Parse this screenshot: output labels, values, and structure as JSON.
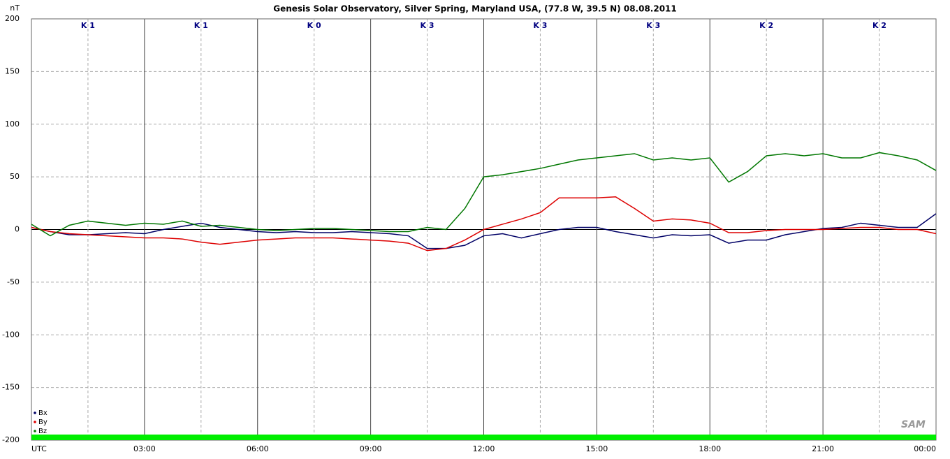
{
  "chart_data": {
    "type": "line",
    "title": "Genesis Solar Observatory, Silver Spring, Maryland USA, (77.8 W, 39.5 N)  08.08.2011",
    "y_label": "nT",
    "logo": "SAM",
    "annotations": [
      "K 1",
      "K 1",
      "K 0",
      "K 3",
      "K 3",
      "K 3",
      "K 2",
      "K 2"
    ],
    "x": [
      0,
      0.5,
      1,
      1.5,
      2,
      2.5,
      3,
      3.5,
      4,
      4.5,
      5,
      5.5,
      6,
      6.5,
      7,
      7.5,
      8,
      8.5,
      9,
      9.5,
      10,
      10.5,
      11,
      11.5,
      12,
      12.5,
      13,
      13.5,
      14,
      14.5,
      15,
      15.5,
      16,
      16.5,
      17,
      17.5,
      18,
      18.5,
      19,
      19.5,
      20,
      20.5,
      21,
      21.5,
      22,
      22.5,
      23,
      23.5,
      24
    ],
    "series": [
      {
        "name": "Bx",
        "color": "#000066",
        "values": [
          2,
          -2,
          -5,
          -5,
          -4,
          -3,
          -4,
          0,
          3,
          6,
          2,
          0,
          -2,
          -3,
          -2,
          -3,
          -3,
          -2,
          -3,
          -4,
          -6,
          -18,
          -18,
          -15,
          -6,
          -4,
          -8,
          -4,
          0,
          2,
          2,
          -2,
          -5,
          -8,
          -5,
          -6,
          -5,
          -13,
          -10,
          -10,
          -5,
          -2,
          1,
          2,
          6,
          4,
          2,
          2,
          15
        ]
      },
      {
        "name": "By",
        "color": "#dd0000",
        "values": [
          2,
          -2,
          -4,
          -5,
          -6,
          -7,
          -8,
          -8,
          -9,
          -12,
          -14,
          -12,
          -10,
          -9,
          -8,
          -8,
          -8,
          -9,
          -10,
          -11,
          -13,
          -20,
          -18,
          -10,
          0,
          5,
          10,
          16,
          30,
          30,
          30,
          31,
          20,
          8,
          10,
          9,
          6,
          -3,
          -3,
          -1,
          0,
          0,
          0,
          1,
          2,
          2,
          0,
          0,
          -4
        ]
      },
      {
        "name": "Bz",
        "color": "#007700",
        "values": [
          5,
          -6,
          4,
          8,
          6,
          4,
          6,
          5,
          8,
          3,
          4,
          2,
          0,
          -1,
          0,
          1,
          1,
          0,
          -1,
          -2,
          -2,
          2,
          0,
          20,
          50,
          52,
          55,
          58,
          62,
          66,
          68,
          70,
          72,
          66,
          68,
          66,
          68,
          45,
          55,
          70,
          72,
          70,
          72,
          68,
          68,
          73,
          70,
          66,
          56
        ]
      }
    ],
    "xlim": [
      0,
      24
    ],
    "xticks": [
      {
        "value": 0,
        "label": "UTC"
      },
      {
        "value": 3,
        "label": "03:00"
      },
      {
        "value": 6,
        "label": "06:00"
      },
      {
        "value": 9,
        "label": "09:00"
      },
      {
        "value": 12,
        "label": "12:00"
      },
      {
        "value": 15,
        "label": "15:00"
      },
      {
        "value": 18,
        "label": "18:00"
      },
      {
        "value": 21,
        "label": "21:00"
      },
      {
        "value": 24,
        "label": "00:00"
      }
    ],
    "ylim": [
      -200,
      200
    ],
    "yticks": [
      200,
      150,
      100,
      50,
      0,
      -50,
      -100,
      -150,
      -200
    ],
    "grid": true
  }
}
